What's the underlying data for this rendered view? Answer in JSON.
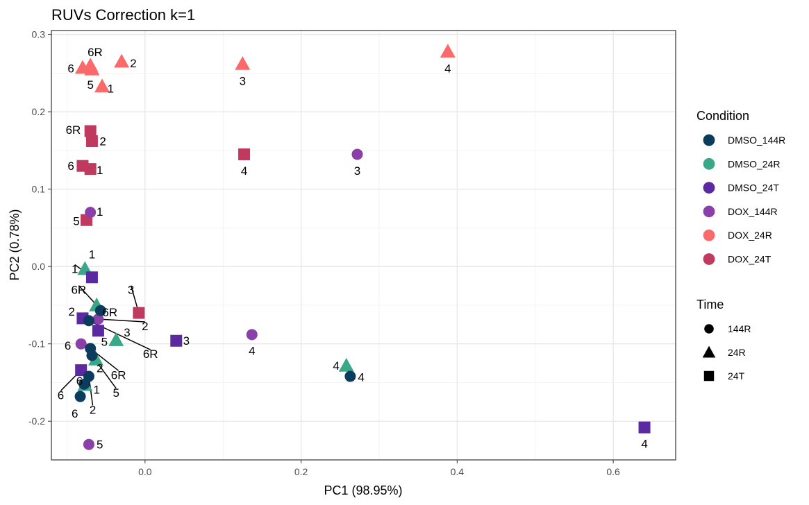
{
  "chart_data": {
    "type": "scatter",
    "title": "RUVs Correction k=1",
    "xlabel": "PC1 (98.95%)",
    "ylabel": "PC2 (0.78%)",
    "xlim": [
      -0.12,
      0.68
    ],
    "ylim": [
      -0.25,
      0.305
    ],
    "xticks": [
      0.0,
      0.2,
      0.4,
      0.6
    ],
    "xtick_labels": [
      "0.0",
      "0.2",
      "0.4",
      "0.6"
    ],
    "yticks": [
      -0.2,
      -0.1,
      0.0,
      0.1,
      0.2,
      0.3
    ],
    "ytick_labels": [
      "-0.2",
      "-0.1",
      "0.0",
      "0.1",
      "0.2",
      "0.3"
    ],
    "grid": true,
    "legend_placement": "right",
    "legends": [
      {
        "title": "Condition",
        "key": "condition",
        "entries": [
          {
            "label": "DMSO_144R",
            "color": "#0b3c5d"
          },
          {
            "label": "DMSO_24R",
            "color": "#3aa788"
          },
          {
            "label": "DMSO_24T",
            "color": "#5b2aa0"
          },
          {
            "label": "DOX_144R",
            "color": "#8b3fa8"
          },
          {
            "label": "DOX_24R",
            "color": "#fb6a6a"
          },
          {
            "label": "DOX_24T",
            "color": "#c03a60"
          }
        ]
      },
      {
        "title": "Time",
        "key": "time",
        "entries": [
          {
            "label": "144R",
            "shape": "circle"
          },
          {
            "label": "24R",
            "shape": "triangle"
          },
          {
            "label": "24T",
            "shape": "square"
          }
        ]
      }
    ],
    "points": [
      {
        "x": -0.03,
        "y": 0.265,
        "condition": "DOX_24R",
        "time": "24R",
        "label": "2",
        "lx": -0.015,
        "ly": 0.263
      },
      {
        "x": -0.07,
        "y": 0.26,
        "condition": "DOX_24R",
        "time": "24R",
        "label": "6R",
        "lx": -0.064,
        "ly": 0.277
      },
      {
        "x": -0.08,
        "y": 0.257,
        "condition": "DOX_24R",
        "time": "24R",
        "label": "6",
        "lx": -0.095,
        "ly": 0.256
      },
      {
        "x": -0.055,
        "y": 0.233,
        "condition": "DOX_24R",
        "time": "24R",
        "label": "1",
        "lx": -0.044,
        "ly": 0.23
      },
      {
        "x": -0.068,
        "y": 0.255,
        "condition": "DOX_24R",
        "time": "24R",
        "label": "5",
        "lx": -0.07,
        "ly": 0.235
      },
      {
        "x": 0.125,
        "y": 0.262,
        "condition": "DOX_24R",
        "time": "24R",
        "label": "3",
        "lx": 0.125,
        "ly": 0.24
      },
      {
        "x": 0.388,
        "y": 0.278,
        "condition": "DOX_24R",
        "time": "24R",
        "label": "4",
        "lx": 0.388,
        "ly": 0.256
      },
      {
        "x": -0.07,
        "y": 0.175,
        "condition": "DOX_24T",
        "time": "24T",
        "label": "6R",
        "lx": -0.092,
        "ly": 0.177
      },
      {
        "x": -0.068,
        "y": 0.162,
        "condition": "DOX_24T",
        "time": "24T",
        "label": "2",
        "lx": -0.054,
        "ly": 0.162
      },
      {
        "x": -0.08,
        "y": 0.13,
        "condition": "DOX_24T",
        "time": "24T",
        "label": "6",
        "lx": -0.095,
        "ly": 0.13
      },
      {
        "x": -0.07,
        "y": 0.126,
        "condition": "DOX_24T",
        "time": "24T",
        "label": "1",
        "lx": -0.058,
        "ly": 0.125
      },
      {
        "x": 0.127,
        "y": 0.145,
        "condition": "DOX_24T",
        "time": "24T",
        "label": "4",
        "lx": 0.127,
        "ly": 0.124
      },
      {
        "x": -0.075,
        "y": 0.06,
        "condition": "DOX_24T",
        "time": "24T",
        "label": "5",
        "lx": -0.088,
        "ly": 0.059
      },
      {
        "x": -0.008,
        "y": -0.06,
        "condition": "DOX_24T",
        "time": "24T",
        "label": "3",
        "lx": -0.018,
        "ly": -0.03,
        "line": true
      },
      {
        "x": 0.272,
        "y": 0.145,
        "condition": "DOX_144R",
        "time": "144R",
        "label": "3",
        "lx": 0.272,
        "ly": 0.124
      },
      {
        "x": -0.07,
        "y": 0.07,
        "condition": "DOX_144R",
        "time": "144R",
        "label": "1",
        "lx": -0.058,
        "ly": 0.071
      },
      {
        "x": 0.137,
        "y": -0.088,
        "condition": "DOX_144R",
        "time": "144R",
        "label": "4",
        "lx": 0.137,
        "ly": -0.109
      },
      {
        "x": -0.06,
        "y": -0.068,
        "condition": "DOX_144R",
        "time": "144R",
        "label": "2",
        "lx": 0.0,
        "ly": -0.077,
        "line": true
      },
      {
        "x": -0.082,
        "y": -0.1,
        "condition": "DOX_144R",
        "time": "144R",
        "label": "6",
        "lx": -0.099,
        "ly": -0.102
      },
      {
        "x": -0.072,
        "y": -0.23,
        "condition": "DOX_144R",
        "time": "144R",
        "label": "5",
        "lx": -0.058,
        "ly": -0.23
      },
      {
        "x": -0.077,
        "y": -0.003,
        "condition": "DMSO_24R",
        "time": "24R",
        "label": "1",
        "lx": -0.068,
        "ly": 0.016
      },
      {
        "x": -0.062,
        "y": -0.05,
        "condition": "DMSO_24R",
        "time": "24R",
        "label": "6R",
        "lx": -0.085,
        "ly": -0.03,
        "line": true
      },
      {
        "x": -0.037,
        "y": -0.095,
        "condition": "DMSO_24R",
        "time": "24R",
        "label": "3",
        "lx": -0.023,
        "ly": -0.085
      },
      {
        "x": -0.063,
        "y": -0.12,
        "condition": "DMSO_24R",
        "time": "24R",
        "label": "2",
        "lx": -0.058,
        "ly": -0.131
      },
      {
        "x": -0.077,
        "y": -0.153,
        "condition": "DMSO_24R",
        "time": "24R",
        "label": "1",
        "lx": -0.062,
        "ly": -0.159
      },
      {
        "x": 0.258,
        "y": -0.128,
        "condition": "DMSO_24R",
        "time": "24R",
        "label": "4",
        "lx": 0.245,
        "ly": -0.128
      },
      {
        "x": -0.068,
        "y": -0.014,
        "condition": "DMSO_24T",
        "time": "24T",
        "label": "1",
        "lx": -0.09,
        "ly": -0.003,
        "line": true
      },
      {
        "x": -0.08,
        "y": -0.067,
        "condition": "DMSO_24T",
        "time": "24T",
        "label": "2",
        "lx": -0.094,
        "ly": -0.058
      },
      {
        "x": -0.06,
        "y": -0.083,
        "condition": "DMSO_24T",
        "time": "24T",
        "label": "5",
        "lx": -0.052,
        "ly": -0.097
      },
      {
        "x": 0.04,
        "y": -0.096,
        "condition": "DMSO_24T",
        "time": "24T",
        "label": "3",
        "lx": 0.053,
        "ly": -0.096
      },
      {
        "x": -0.082,
        "y": -0.134,
        "condition": "DMSO_24T",
        "time": "24T",
        "label": "6",
        "lx": -0.108,
        "ly": -0.166,
        "line": true
      },
      {
        "x": 0.64,
        "y": -0.208,
        "condition": "DMSO_24T",
        "time": "24T",
        "label": "4",
        "lx": 0.64,
        "ly": -0.229
      },
      {
        "x": -0.057,
        "y": -0.057,
        "condition": "DMSO_144R",
        "time": "144R",
        "label": "6R",
        "lx": -0.045,
        "ly": -0.059
      },
      {
        "x": -0.072,
        "y": -0.07,
        "condition": "DMSO_144R",
        "time": "144R",
        "label": "6R",
        "lx": 0.007,
        "ly": -0.113,
        "line": true
      },
      {
        "x": -0.07,
        "y": -0.106,
        "condition": "DMSO_144R",
        "time": "144R",
        "label": "6R",
        "lx": -0.034,
        "ly": -0.14,
        "line": true
      },
      {
        "x": -0.068,
        "y": -0.115,
        "condition": "DMSO_144R",
        "time": "144R",
        "label": "5",
        "lx": -0.037,
        "ly": -0.163,
        "line": true
      },
      {
        "x": -0.072,
        "y": -0.142,
        "condition": "DMSO_144R",
        "time": "144R",
        "label": "2",
        "lx": -0.067,
        "ly": -0.185,
        "line": true
      },
      {
        "x": -0.083,
        "y": -0.168,
        "condition": "DMSO_144R",
        "time": "144R",
        "label": "6",
        "lx": -0.09,
        "ly": -0.19
      },
      {
        "x": 0.263,
        "y": -0.142,
        "condition": "DMSO_144R",
        "time": "144R",
        "label": "4",
        "lx": 0.277,
        "ly": -0.143
      },
      {
        "x": -0.078,
        "y": -0.152,
        "condition": "DMSO_144R",
        "time": "144R",
        "label": "6",
        "lx": -0.084,
        "ly": -0.148
      }
    ]
  }
}
